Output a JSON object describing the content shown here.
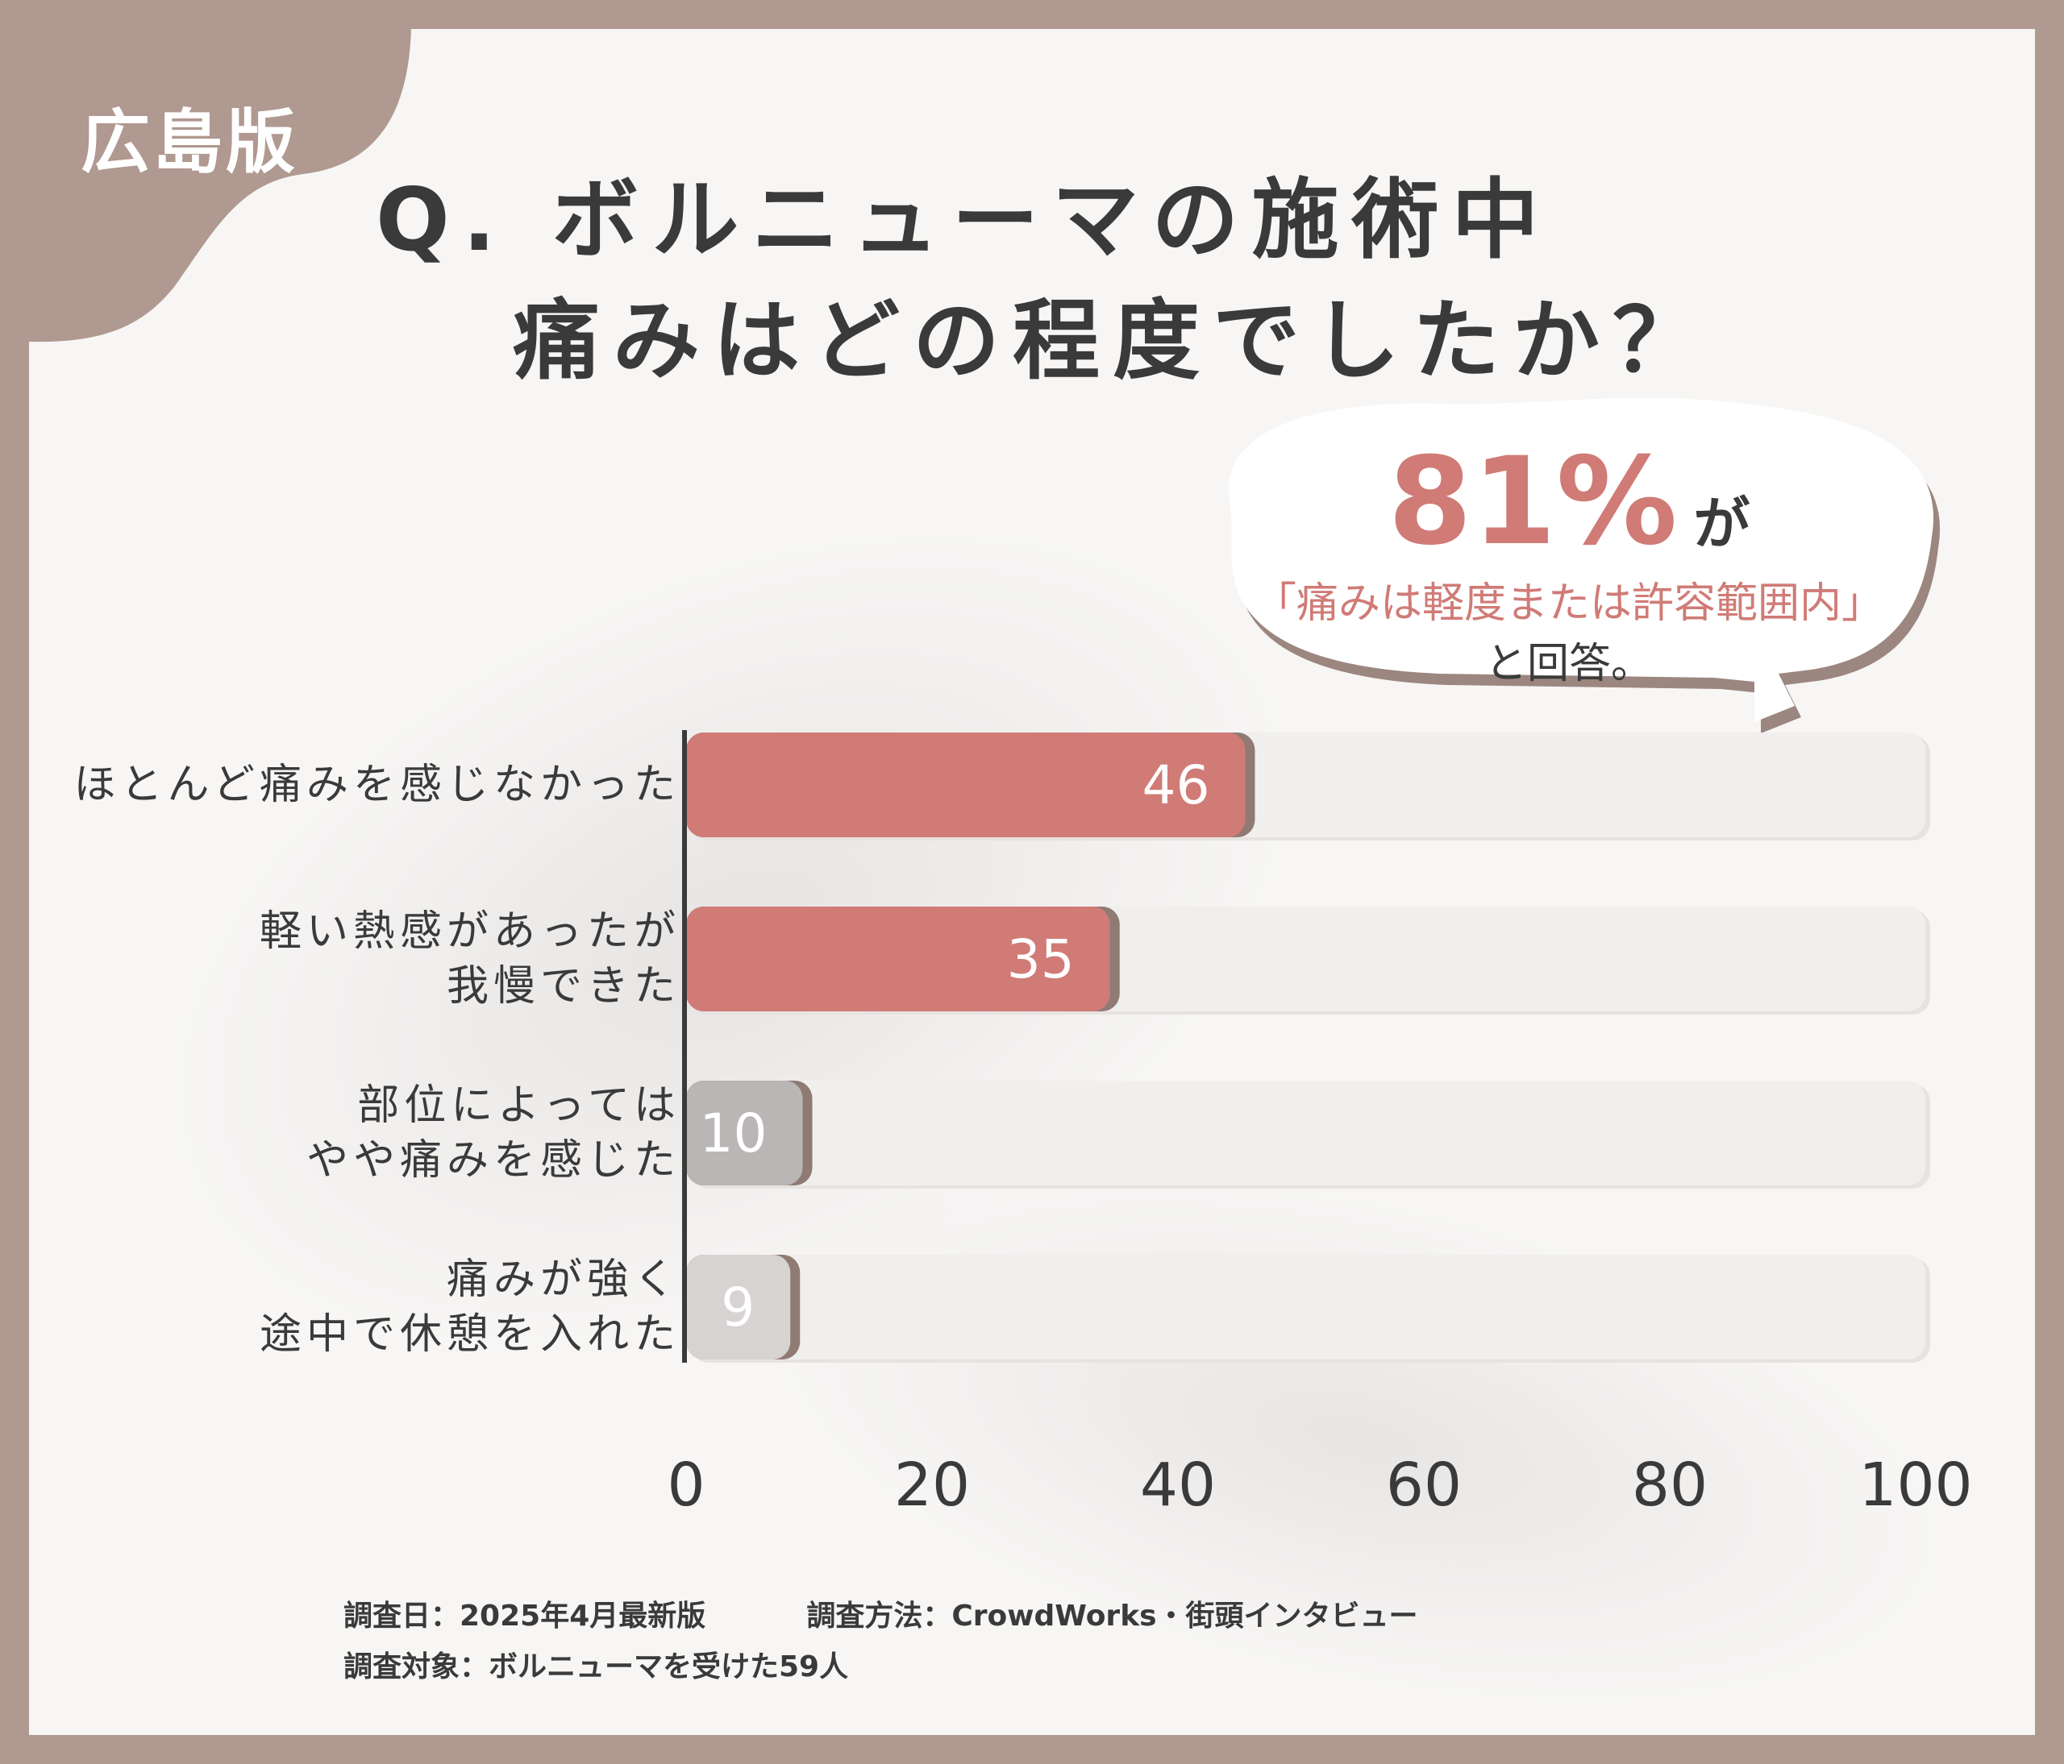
{
  "region_label": "広島版",
  "title": {
    "line1": "Q. ボルニューマの施術中",
    "line2": "痛みはどの程度でしたか？"
  },
  "callout": {
    "percent": "81%",
    "particle": "が",
    "quote": "「痛みは軽度または許容範囲内」",
    "answer": "と回答。"
  },
  "chart_data": {
    "type": "bar",
    "orientation": "horizontal",
    "categories": [
      [
        "ほとんど痛みを感じなかった"
      ],
      [
        "軽い熱感があったが",
        "我慢できた"
      ],
      [
        "部位によっては",
        "やや痛みを感じた"
      ],
      [
        "痛みが強く",
        "途中で休憩を入れた"
      ]
    ],
    "values": [
      46,
      35,
      10,
      9
    ],
    "value_labels": [
      "46",
      "35",
      "10",
      "9"
    ],
    "bar_colors": [
      "#d07b76",
      "#d07b76",
      "#b9b6b5",
      "#d6d3d2"
    ],
    "xlim": [
      0,
      100
    ],
    "x_ticks": [
      0,
      20,
      40,
      60,
      80,
      100
    ],
    "x_tick_labels": [
      "0",
      "20",
      "40",
      "60",
      "80",
      "100"
    ],
    "grid": false
  },
  "colors": {
    "frame": "#b09990",
    "accent": "#d07b76",
    "track": "#efedeb",
    "text": "#3a3a3a"
  },
  "footer": {
    "date": "調査日：2025年4月最新版",
    "method": "調査方法：CrowdWorks・街頭インタビュー",
    "subject": "調査対象：ボルニューマを受けた59人"
  }
}
